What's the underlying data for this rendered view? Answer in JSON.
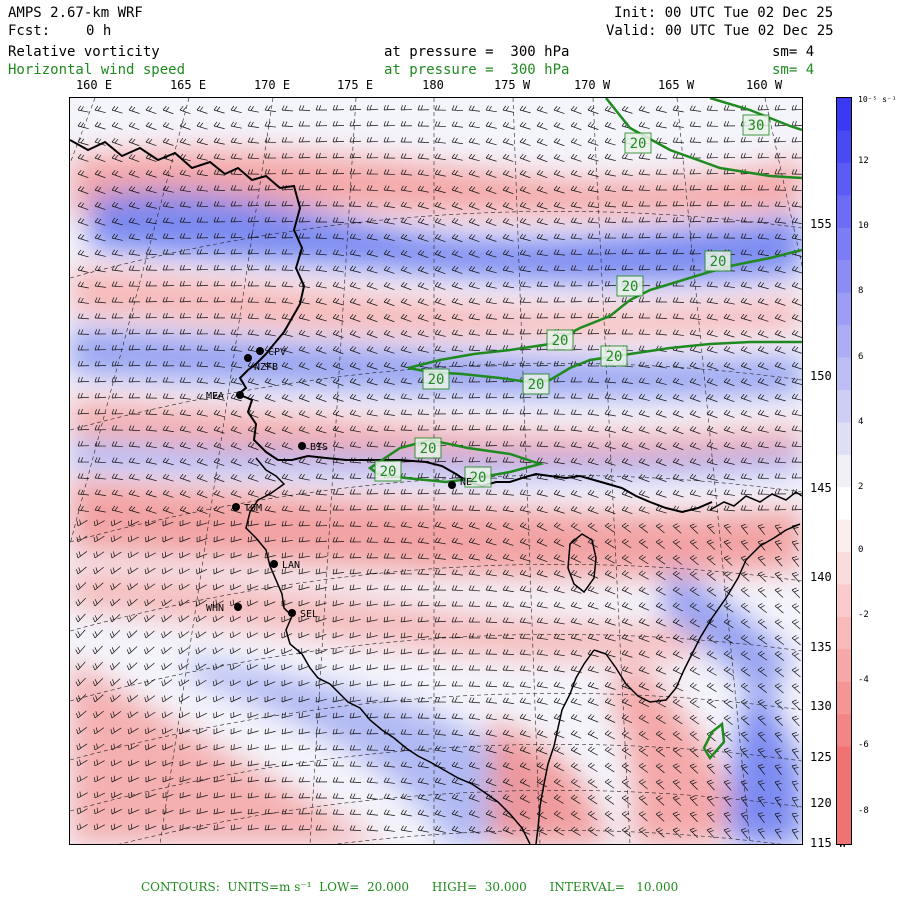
{
  "header": {
    "model": "AMPS 2.67-km WRF",
    "init": "Init: 00 UTC Tue 02 Dec 25",
    "fcst_label": "Fcst:",
    "fcst_value": "0 h",
    "valid": "Valid: 00 UTC Tue 02 Dec 25",
    "field1": "Relative vorticity",
    "field1_level": "at pressure =  300 hPa",
    "field1_sm": "sm= 4",
    "field2": "Horizontal wind speed",
    "field2_level": "at pressure =  300 hPa",
    "field2_sm": "sm= 4"
  },
  "longitude_labels": [
    "160 E",
    "165 E",
    "170 E",
    "175 E",
    "180",
    "175 W",
    "170 W",
    "165 W",
    "160 W"
  ],
  "latitude_labels": [
    "155 W",
    "150 W",
    "145 W",
    "140 W",
    "135 W",
    "130 W",
    "125 W",
    "120 W",
    "115 W"
  ],
  "colorbar": {
    "unit": "10⁻⁵ s⁻¹",
    "ticks": [
      "12",
      "10",
      "8",
      "6",
      "4",
      "2",
      "0",
      "-2",
      "-4",
      "-6",
      "-8"
    ],
    "positive_color": "#3a3af5",
    "negative_color": "#f07878"
  },
  "stations": [
    {
      "name": "CPV"
    },
    {
      "name": "NZFB"
    },
    {
      "name": "MEA"
    },
    {
      "name": "BIS"
    },
    {
      "name": "TOM"
    },
    {
      "name": "LAN"
    },
    {
      "name": "WHN"
    },
    {
      "name": "SEL"
    },
    {
      "name": "NE"
    }
  ],
  "contour_labels": [
    "30",
    "20",
    "20",
    "20",
    "20",
    "20",
    "20",
    "20",
    "20",
    "20",
    "20"
  ],
  "contour_color": "#1f8a1f",
  "footer": {
    "contours": "CONTOURS:  UNITS=m s⁻¹  LOW=  20.000      HIGH=  30.000      INTERVAL=   10.000"
  }
}
